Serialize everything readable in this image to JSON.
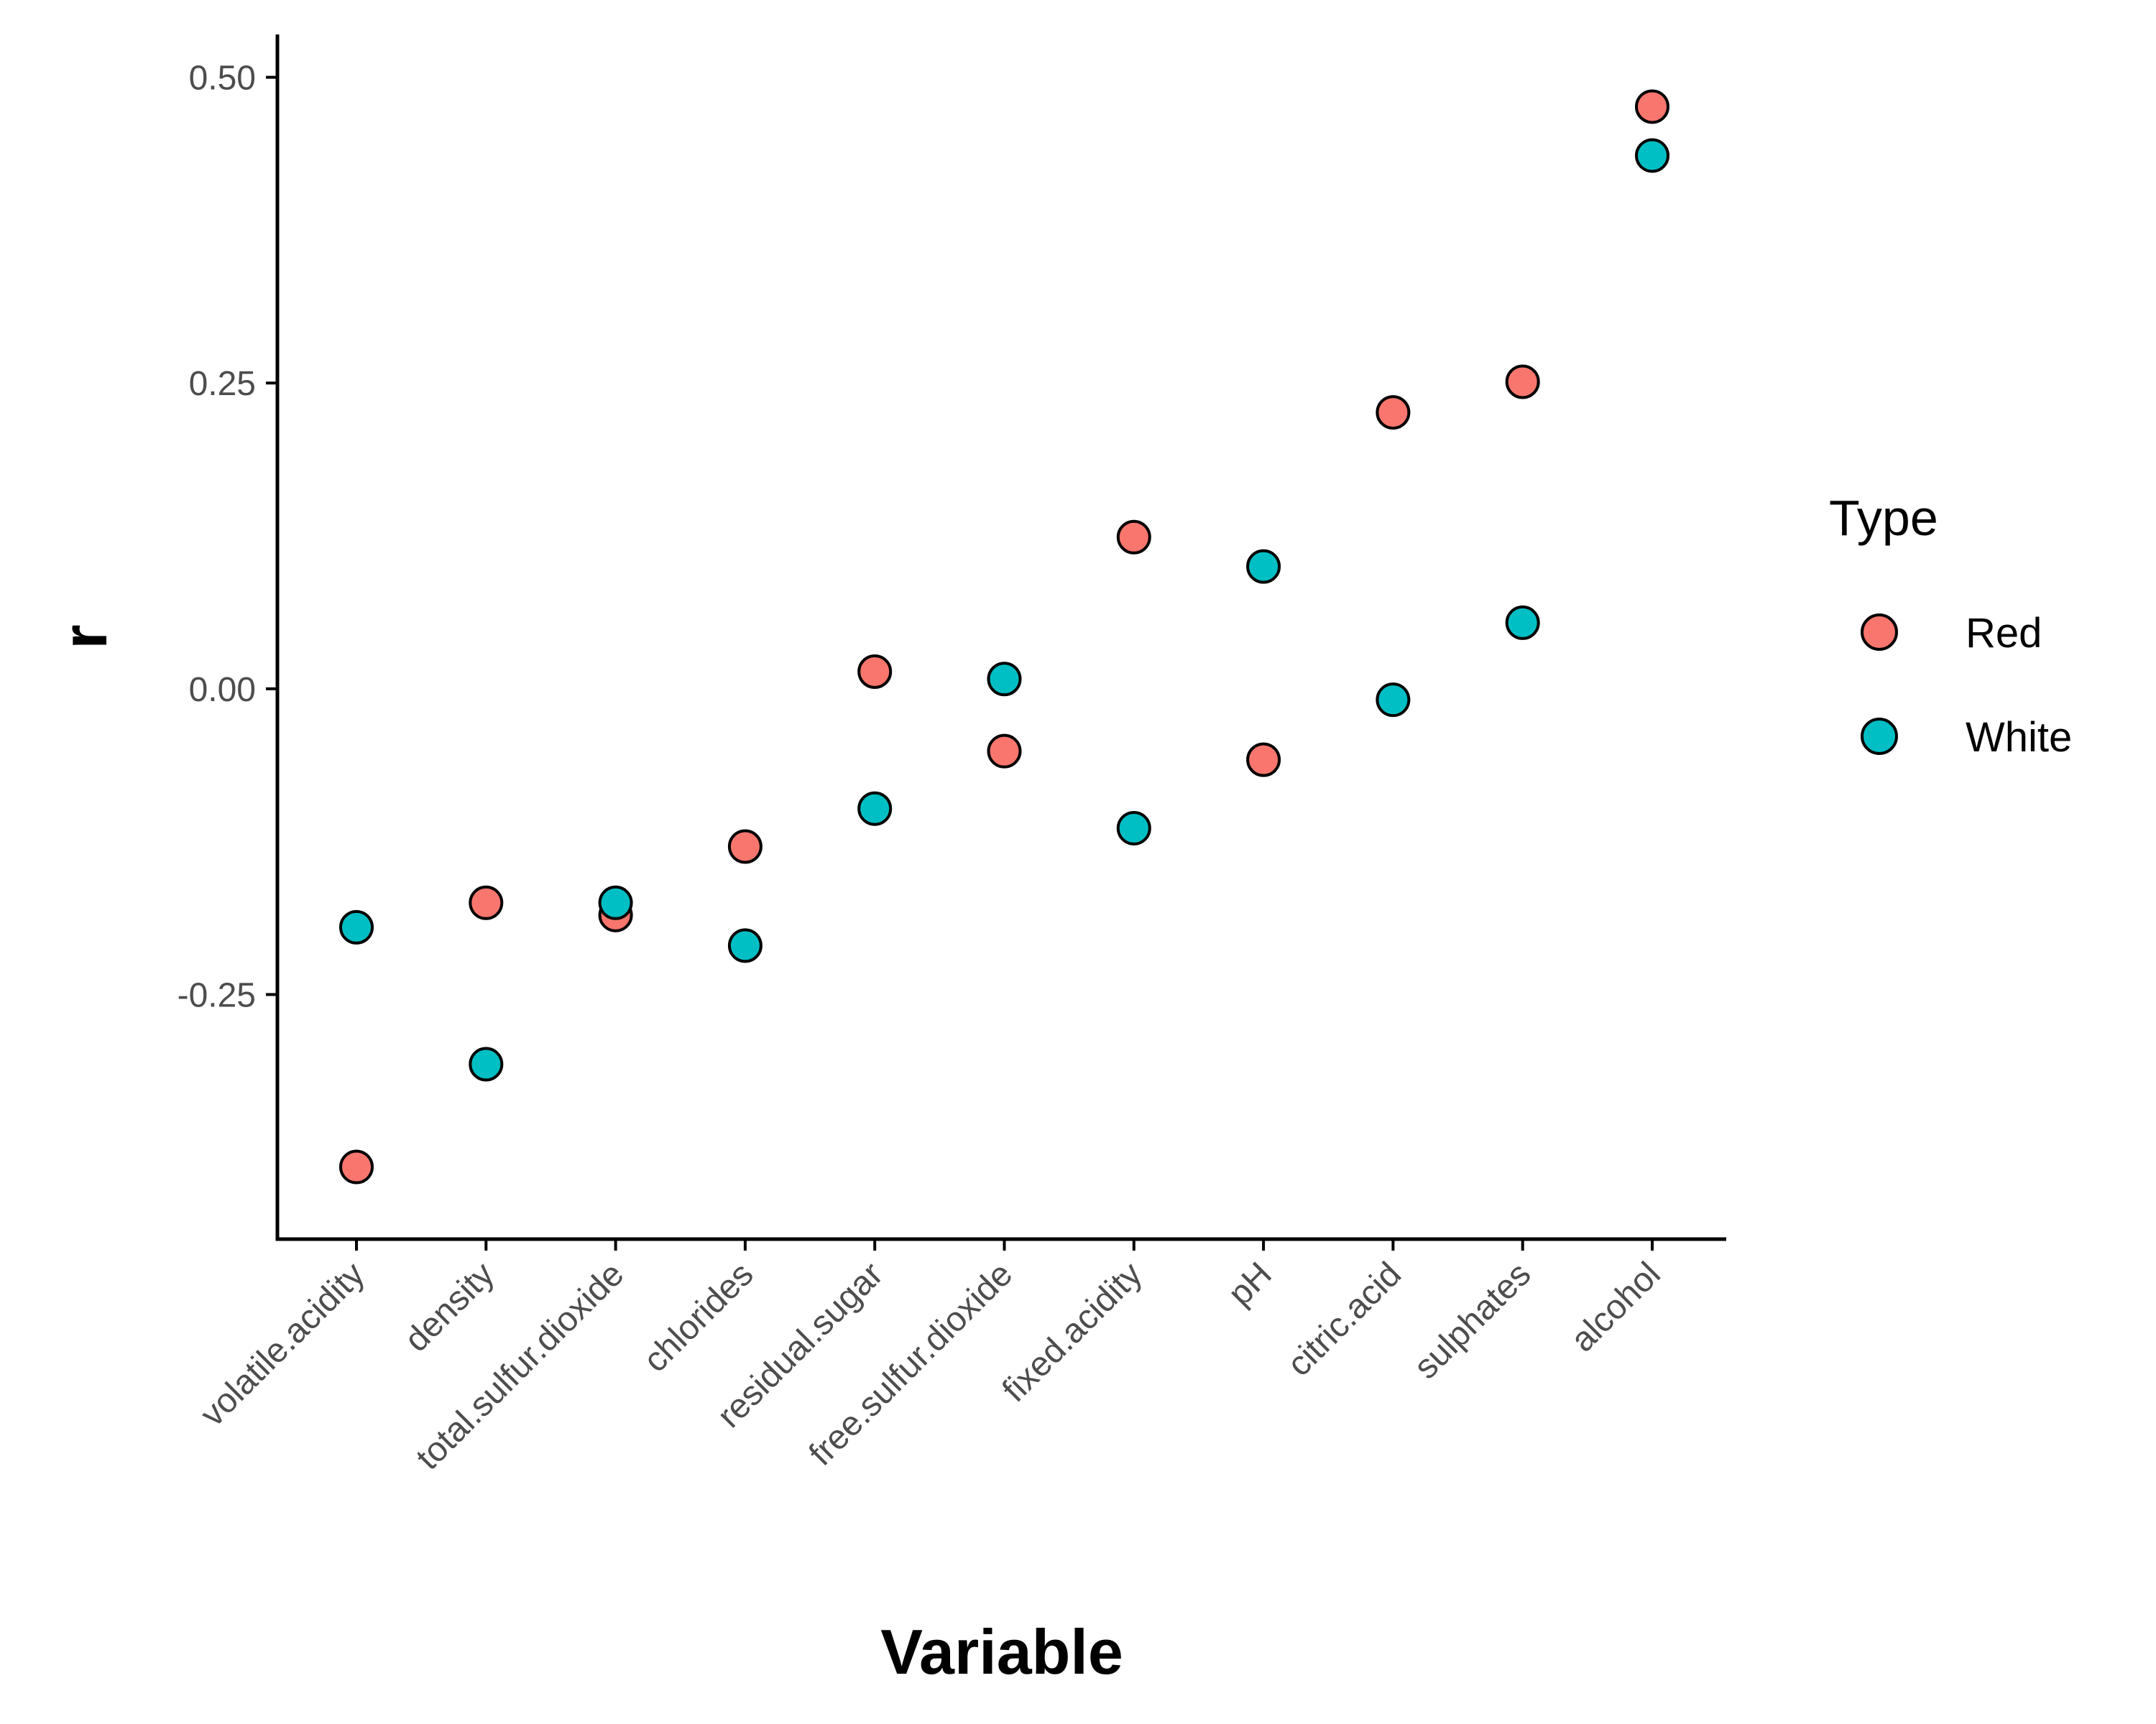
{
  "chart_data": {
    "type": "scatter",
    "title": "",
    "xlabel": "Variable",
    "ylabel": "r",
    "categories": [
      "volatile.acidity",
      "density",
      "total.sulfur.dioxide",
      "chlorides",
      "residual.sugar",
      "free.sulfur.dioxide",
      "fixed.acidity",
      "pH",
      "citric.acid",
      "sulphates",
      "alcohol"
    ],
    "ylim": [
      -0.45,
      0.535
    ],
    "yticks": [
      {
        "value": 0.5,
        "label": "0.50"
      },
      {
        "value": 0.25,
        "label": "0.25"
      },
      {
        "value": 0.0,
        "label": "0.00"
      },
      {
        "value": -0.25,
        "label": "-0.25"
      }
    ],
    "legend": {
      "title": "Type",
      "placement": "right"
    },
    "grid": false,
    "series": [
      {
        "name": "Red",
        "color": "#F8766D",
        "values": [
          -0.391,
          -0.175,
          -0.185,
          -0.129,
          0.014,
          -0.051,
          0.124,
          -0.058,
          0.226,
          0.251,
          0.476
        ]
      },
      {
        "name": "White",
        "color": "#00BFC4",
        "values": [
          -0.195,
          -0.307,
          -0.175,
          -0.21,
          -0.098,
          0.008,
          -0.114,
          0.1,
          -0.009,
          0.054,
          0.436
        ]
      }
    ]
  }
}
